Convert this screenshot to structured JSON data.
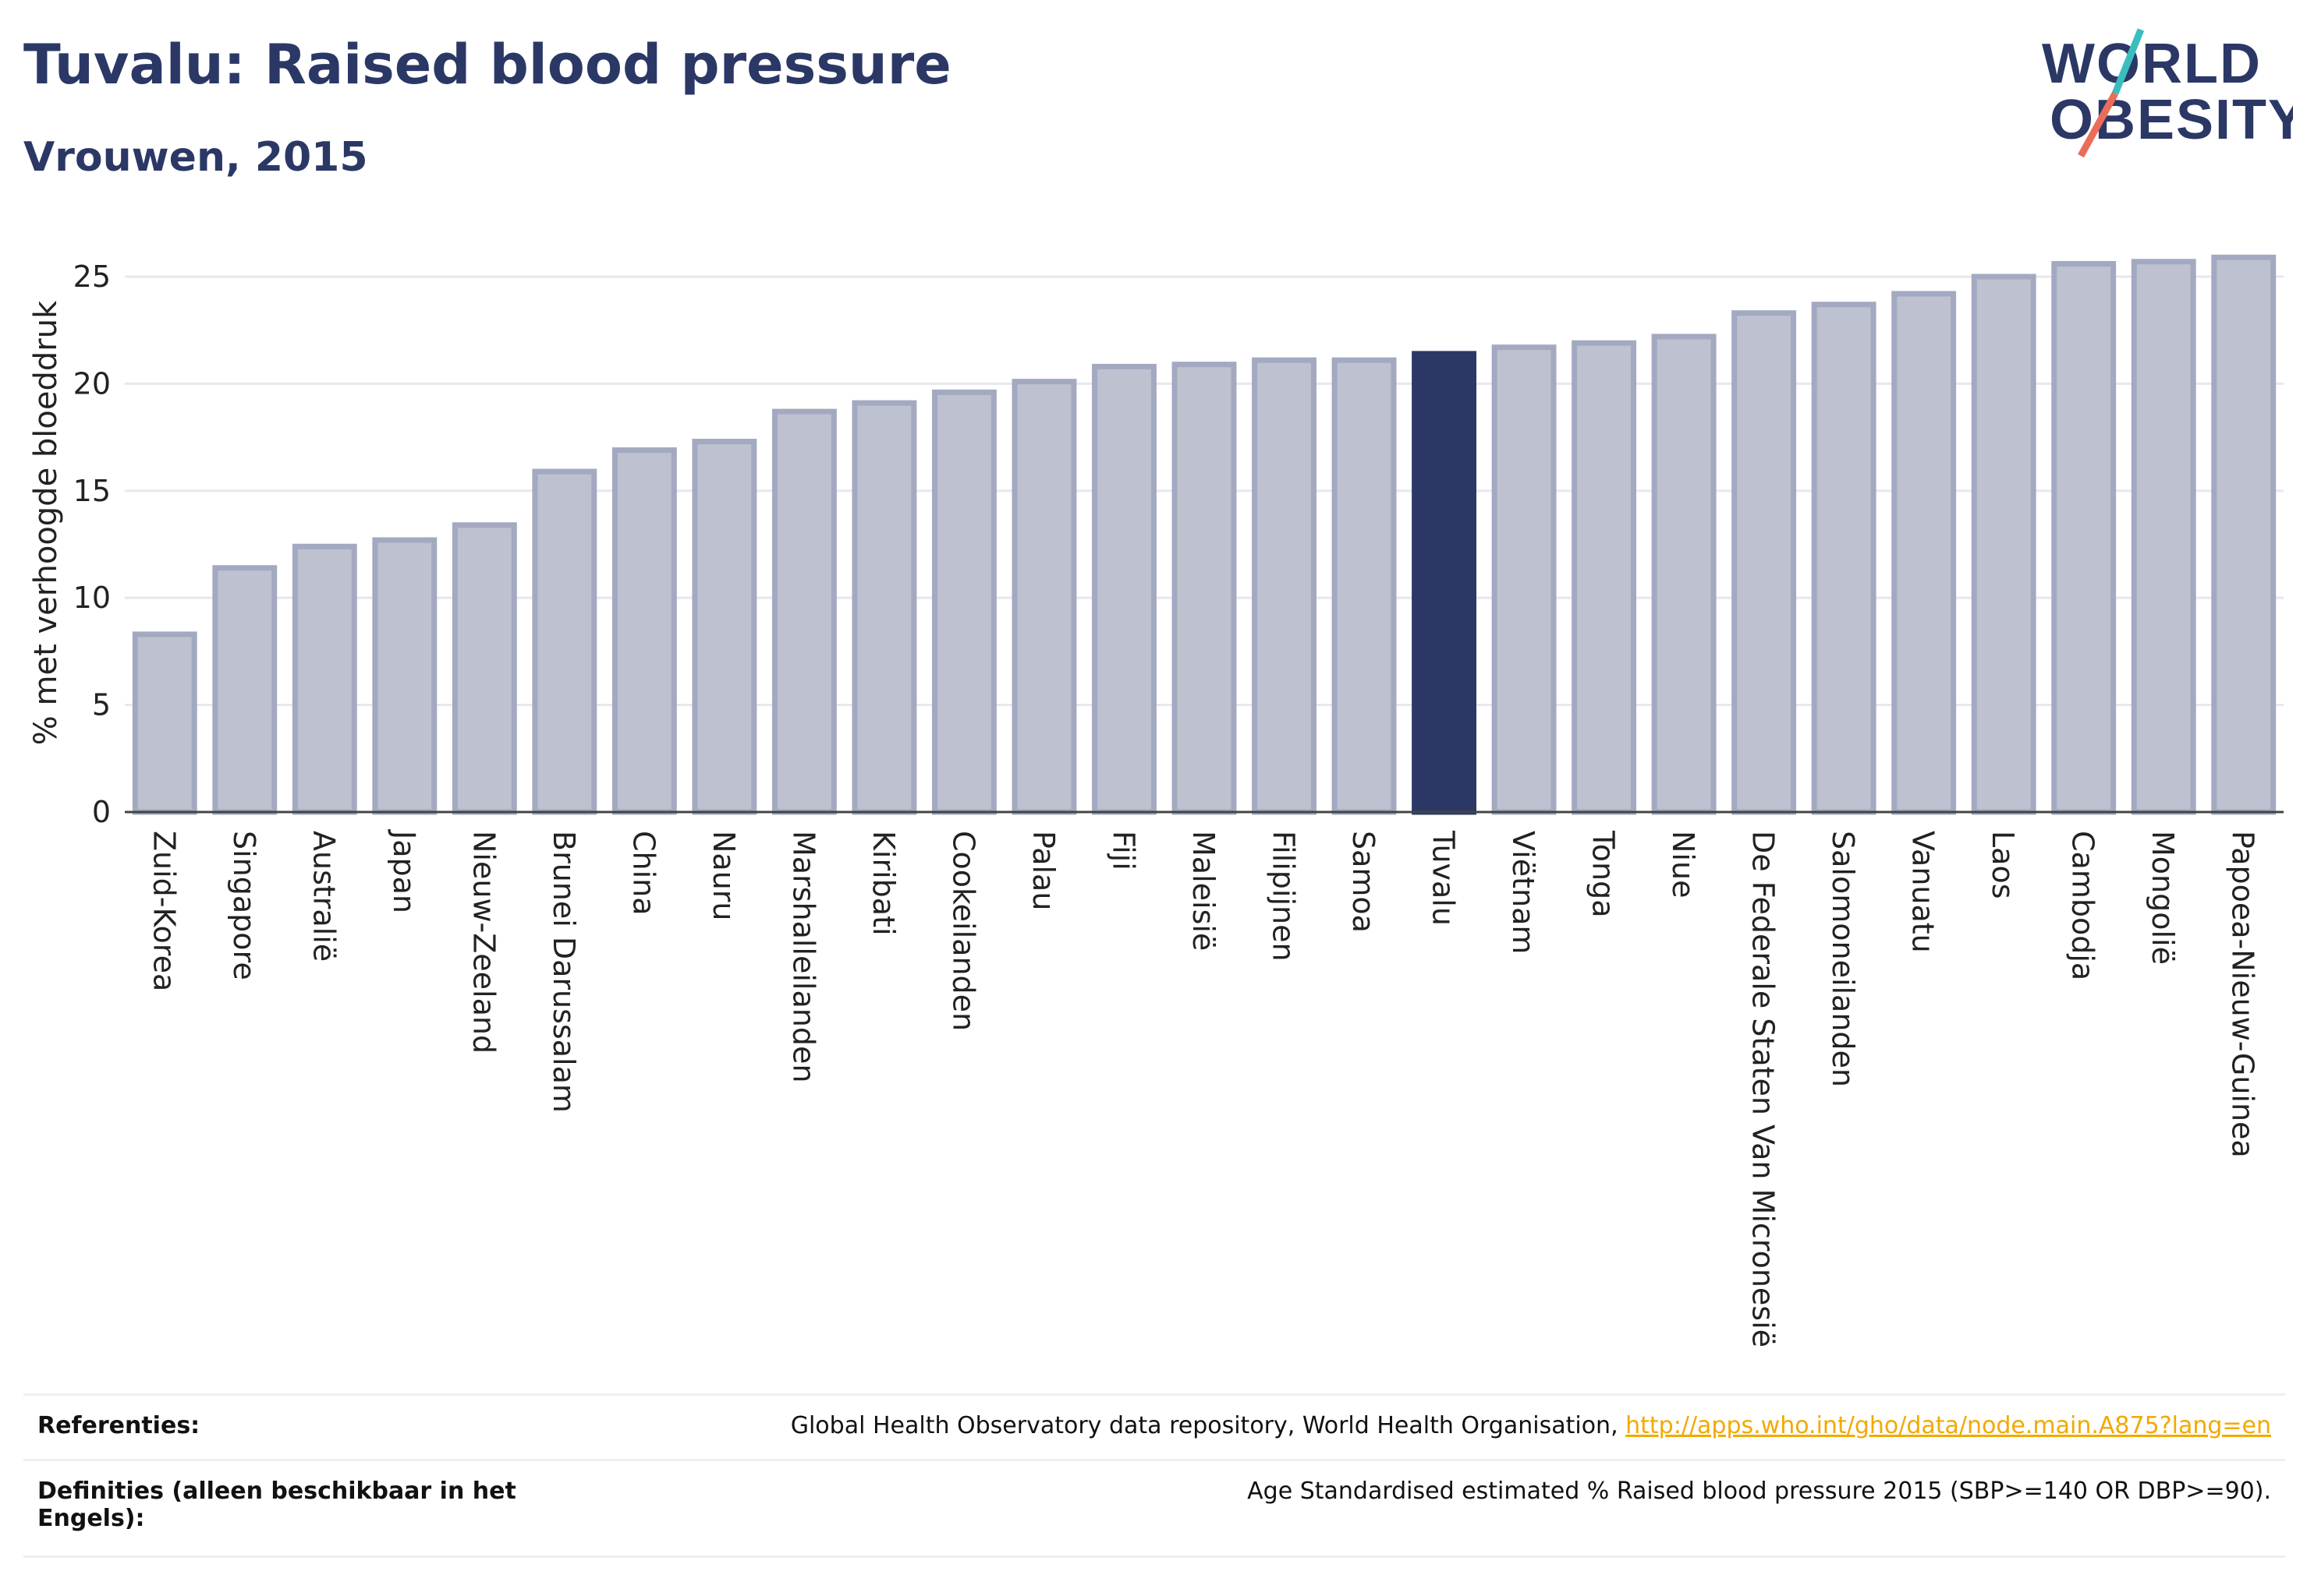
{
  "header": {
    "title": "Tuvalu: Raised blood pressure",
    "subtitle": "Vrouwen, 2015"
  },
  "logo": {
    "line1": "WORLD",
    "line2": "OBESITY"
  },
  "colors": {
    "bar_default": "#bec1cf",
    "bar_stroke": "#a2a9c0",
    "bar_highlight": "#2b3866",
    "text_dark": "#2b3866",
    "grid": "#e6e8ee",
    "logo_teal": "#3bbdc0",
    "logo_coral": "#ea6d5a",
    "link": "#f2a900"
  },
  "chart_data": {
    "type": "bar",
    "ylabel": "% met verhoogde bloeddruk",
    "ylim": [
      0,
      27
    ],
    "yticks": [
      0,
      5,
      10,
      15,
      20,
      25
    ],
    "highlight": "Tuvalu",
    "grid": true,
    "categories": [
      "Zuid-Korea",
      "Singapore",
      "Australië",
      "Japan",
      "Nieuw-Zeeland",
      "Brunei Darussalam",
      "China",
      "Nauru",
      "Marshalleilanden",
      "Kiribati",
      "Cookeilanden",
      "Palau",
      "Fiji",
      "Maleisië",
      "Filipijnen",
      "Samoa",
      "Tuvalu",
      "Viëtnam",
      "Tonga",
      "Niue",
      "De Federale Staten Van Micronesië",
      "Salomoneilanden",
      "Vanuatu",
      "Laos",
      "Cambodja",
      "Mongolië",
      "Papoea-Nieuw-Guinea"
    ],
    "values": [
      8.3,
      11.4,
      12.4,
      12.7,
      13.4,
      15.9,
      16.9,
      17.3,
      18.7,
      19.1,
      19.6,
      20.1,
      20.8,
      20.9,
      21.1,
      21.1,
      21.4,
      21.7,
      21.9,
      22.2,
      23.3,
      23.7,
      24.2,
      25.0,
      25.6,
      25.7,
      25.9
    ]
  },
  "footer": {
    "references_label": "Referenties:",
    "references_text": "Global Health Observatory data repository, World Health Organisation, ",
    "references_link": "http://apps.who.int/gho/data/node.main.A875?lang=en",
    "definitions_label_line1": "Definities (alleen beschikbaar in het",
    "definitions_label_line2": "Engels):",
    "definitions_text": "Age Standardised estimated % Raised blood pressure 2015 (SBP>=140 OR DBP>=90)."
  }
}
